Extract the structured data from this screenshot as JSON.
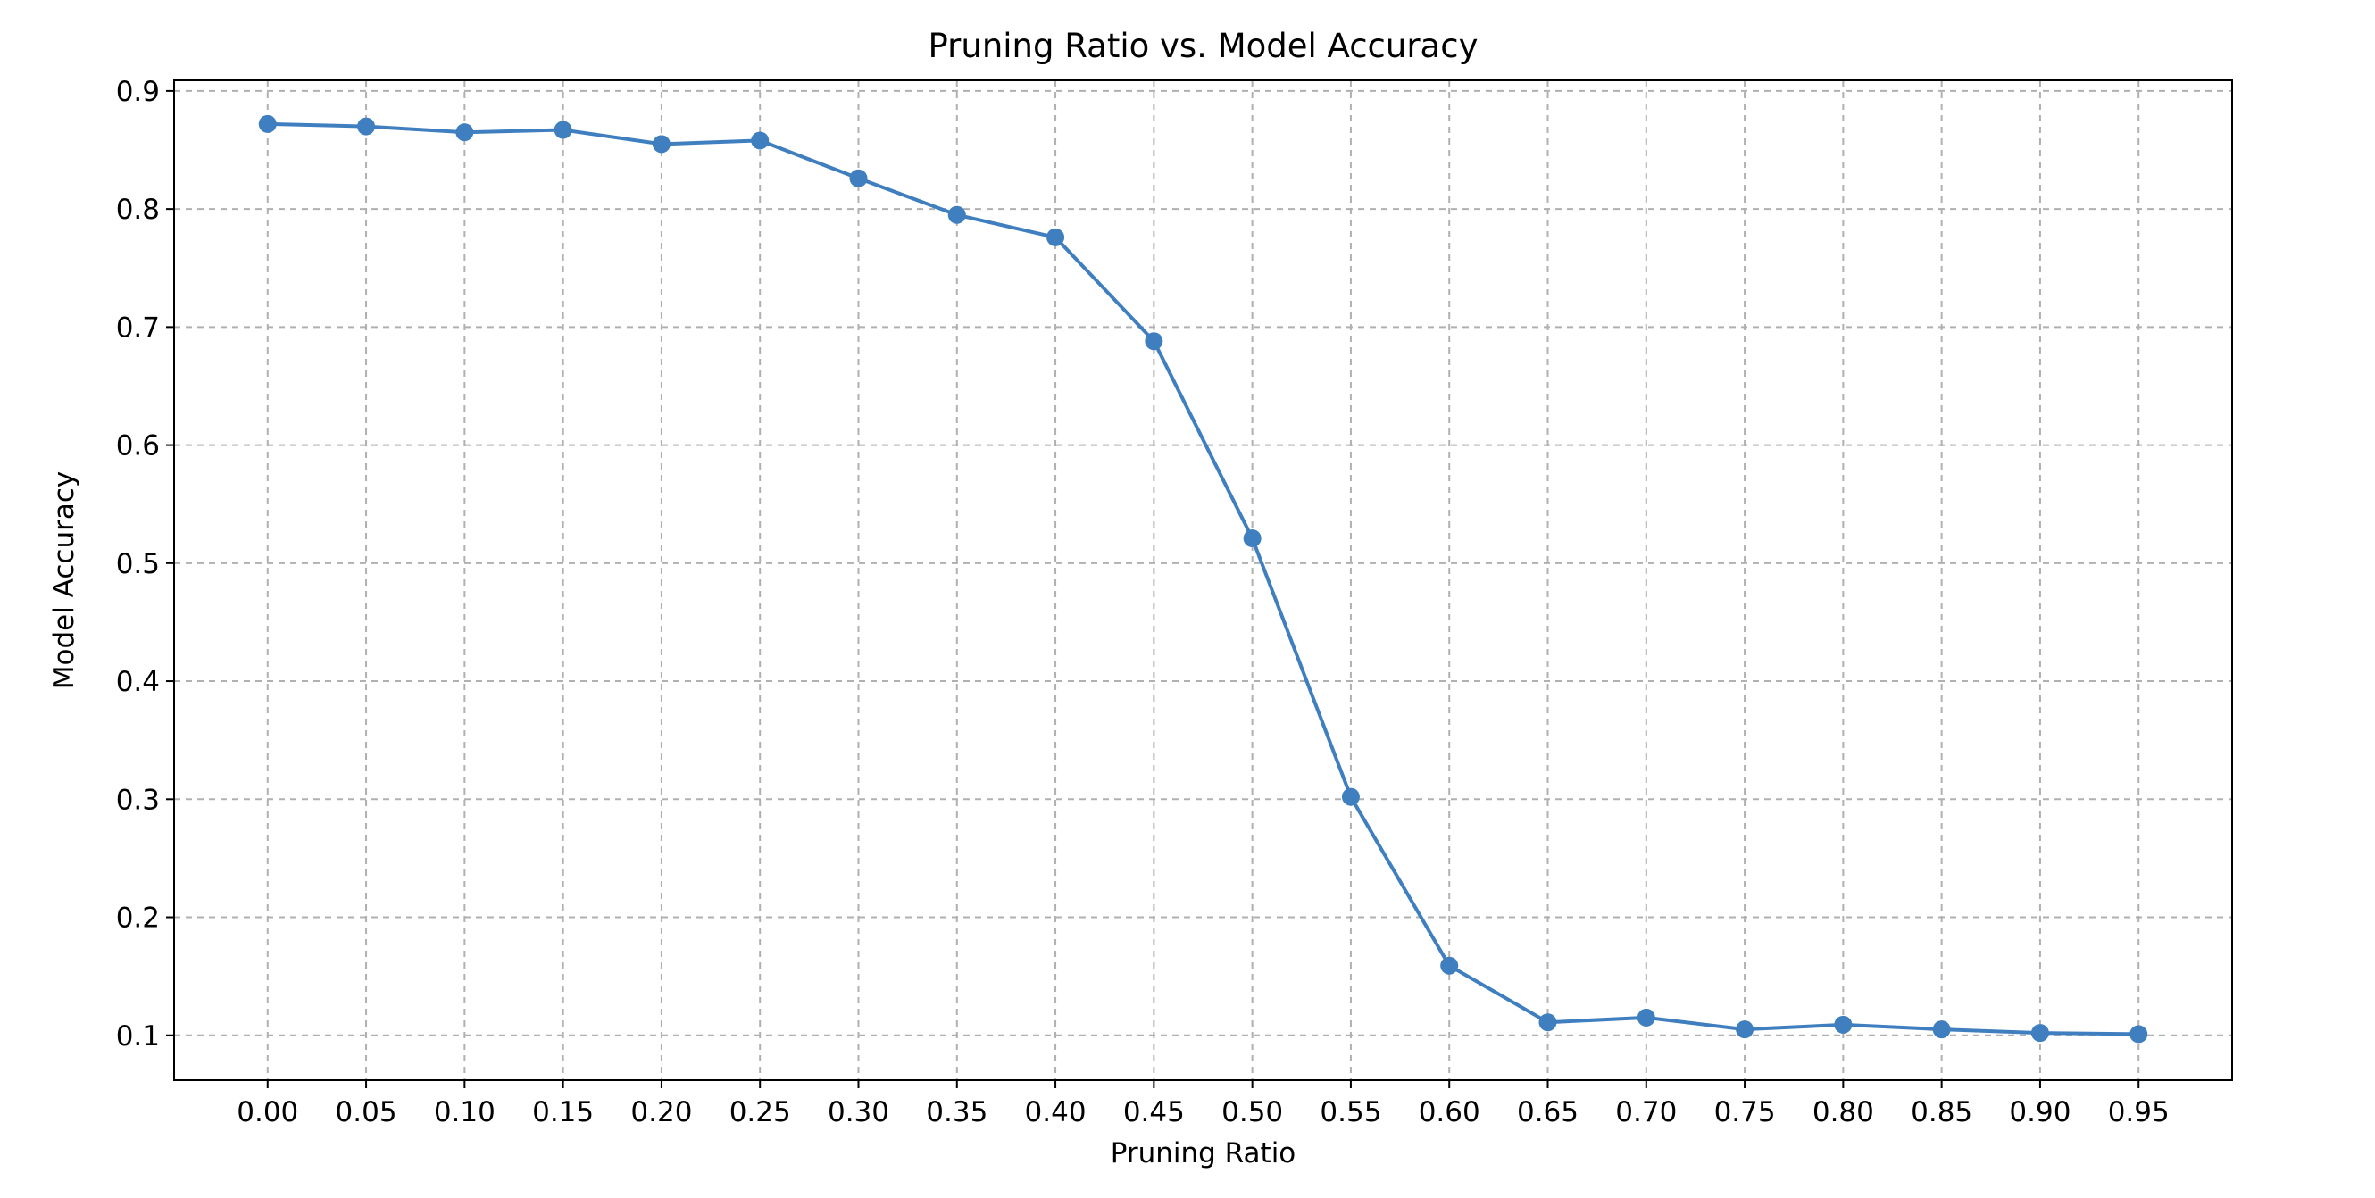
{
  "chart_data": {
    "type": "line",
    "title": "Pruning Ratio vs. Model Accuracy",
    "xlabel": "Pruning Ratio",
    "ylabel": "Model Accuracy",
    "x": [
      0.0,
      0.05,
      0.1,
      0.15,
      0.2,
      0.25,
      0.3,
      0.35,
      0.4,
      0.45,
      0.5,
      0.55,
      0.6,
      0.65,
      0.7,
      0.75,
      0.8,
      0.85,
      0.9,
      0.95
    ],
    "x_tick_labels": [
      "0.00",
      "0.05",
      "0.10",
      "0.15",
      "0.20",
      "0.25",
      "0.30",
      "0.35",
      "0.40",
      "0.45",
      "0.50",
      "0.55",
      "0.60",
      "0.65",
      "0.70",
      "0.75",
      "0.80",
      "0.85",
      "0.90",
      "0.95"
    ],
    "xlim": [
      -0.0475,
      0.9975
    ],
    "y_ticks": [
      0.1,
      0.2,
      0.3,
      0.4,
      0.5,
      0.6,
      0.7,
      0.8,
      0.9
    ],
    "y_tick_labels": [
      "0.1",
      "0.2",
      "0.3",
      "0.4",
      "0.5",
      "0.6",
      "0.7",
      "0.8",
      "0.9"
    ],
    "ylim": [
      0.062,
      0.909
    ],
    "grid": true,
    "marker": "circle",
    "series": [
      {
        "color": "#3f7fbf",
        "values": [
          0.872,
          0.87,
          0.865,
          0.867,
          0.855,
          0.858,
          0.826,
          0.795,
          0.776,
          0.688,
          0.521,
          0.302,
          0.159,
          0.111,
          0.115,
          0.105,
          0.109,
          0.105,
          0.102,
          0.101
        ]
      }
    ]
  }
}
